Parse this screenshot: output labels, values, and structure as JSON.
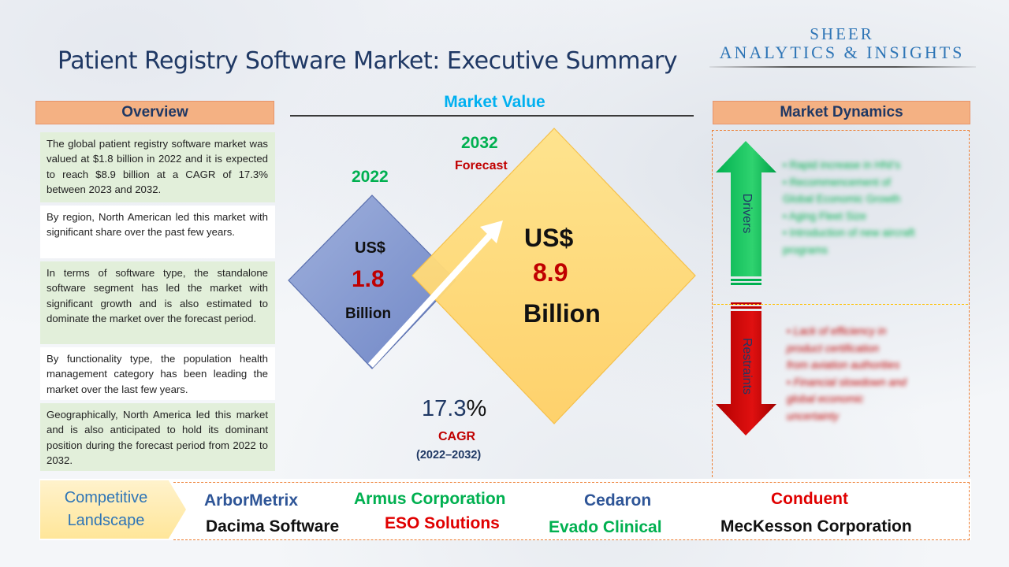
{
  "title": "Patient Registry Software Market: Executive Summary",
  "logo": {
    "line1": "SHEER",
    "line2": "ANALYTICS & INSIGHTS"
  },
  "overview": {
    "header": "Overview",
    "paragraphs": [
      "The global patient registry software market was valued at $1.8 billion in 2022 and it is expected to reach $8.9 billion at a CAGR of 17.3% between 2023 and 2032.",
      "By region, North American led this market with significant share over the past few years.",
      "In terms of software type, the standalone software segment has led the market with significant growth and is also estimated to dominate the market over the forecast period.",
      "By functionality type, the population health management category has been leading the market over the last few years.",
      "Geographically, North America led this market and is also anticipated to hold its dominant position during the forecast period from 2022 to 2032."
    ]
  },
  "market_value": {
    "header": "Market Value",
    "left": {
      "year": "2022",
      "currency": "US$",
      "value": "1.8",
      "unit": "Billion"
    },
    "right": {
      "year": "2032",
      "tag": "Forecast",
      "currency": "US$",
      "value": "8.9",
      "unit": "Billion"
    },
    "cagr": {
      "value": "17.3",
      "pct": "%",
      "label": "CAGR",
      "range": "(2022–2032)"
    }
  },
  "market_dynamics": {
    "header": "Market Dynamics",
    "drivers_label": "Drivers",
    "restraints_label": "Restraints",
    "drivers": [
      "• Rapid increase in HNI's",
      "• Recommencement of",
      "   Global Economic Growth",
      "• Aging Fleet Size",
      "• Introduction of new aircraft",
      "   programs"
    ],
    "restraints": [
      "• Lack of efficiency in",
      "   product certification",
      "   from aviation authorities",
      "• Financial slowdown and",
      "   global economic",
      "   uncertainty"
    ],
    "colors": {
      "drivers": "#00b050",
      "restraints": "#c00000"
    }
  },
  "competitive": {
    "label_line1": "Competitive",
    "label_line2": "Landscape",
    "companies": [
      {
        "name": "ArborMetrix",
        "color": "#2e5597"
      },
      {
        "name": "Armus Corporation",
        "color": "#00b050"
      },
      {
        "name": "Cedaron",
        "color": "#2e5597"
      },
      {
        "name": "Conduent",
        "color": "#e00000"
      },
      {
        "name": "Dacima Software",
        "color": "#111111"
      },
      {
        "name": "ESO Solutions",
        "color": "#e00000"
      },
      {
        "name": "Evado Clinical",
        "color": "#00b050"
      },
      {
        "name": "MecKesson Corporation",
        "color": "#111111"
      }
    ]
  }
}
